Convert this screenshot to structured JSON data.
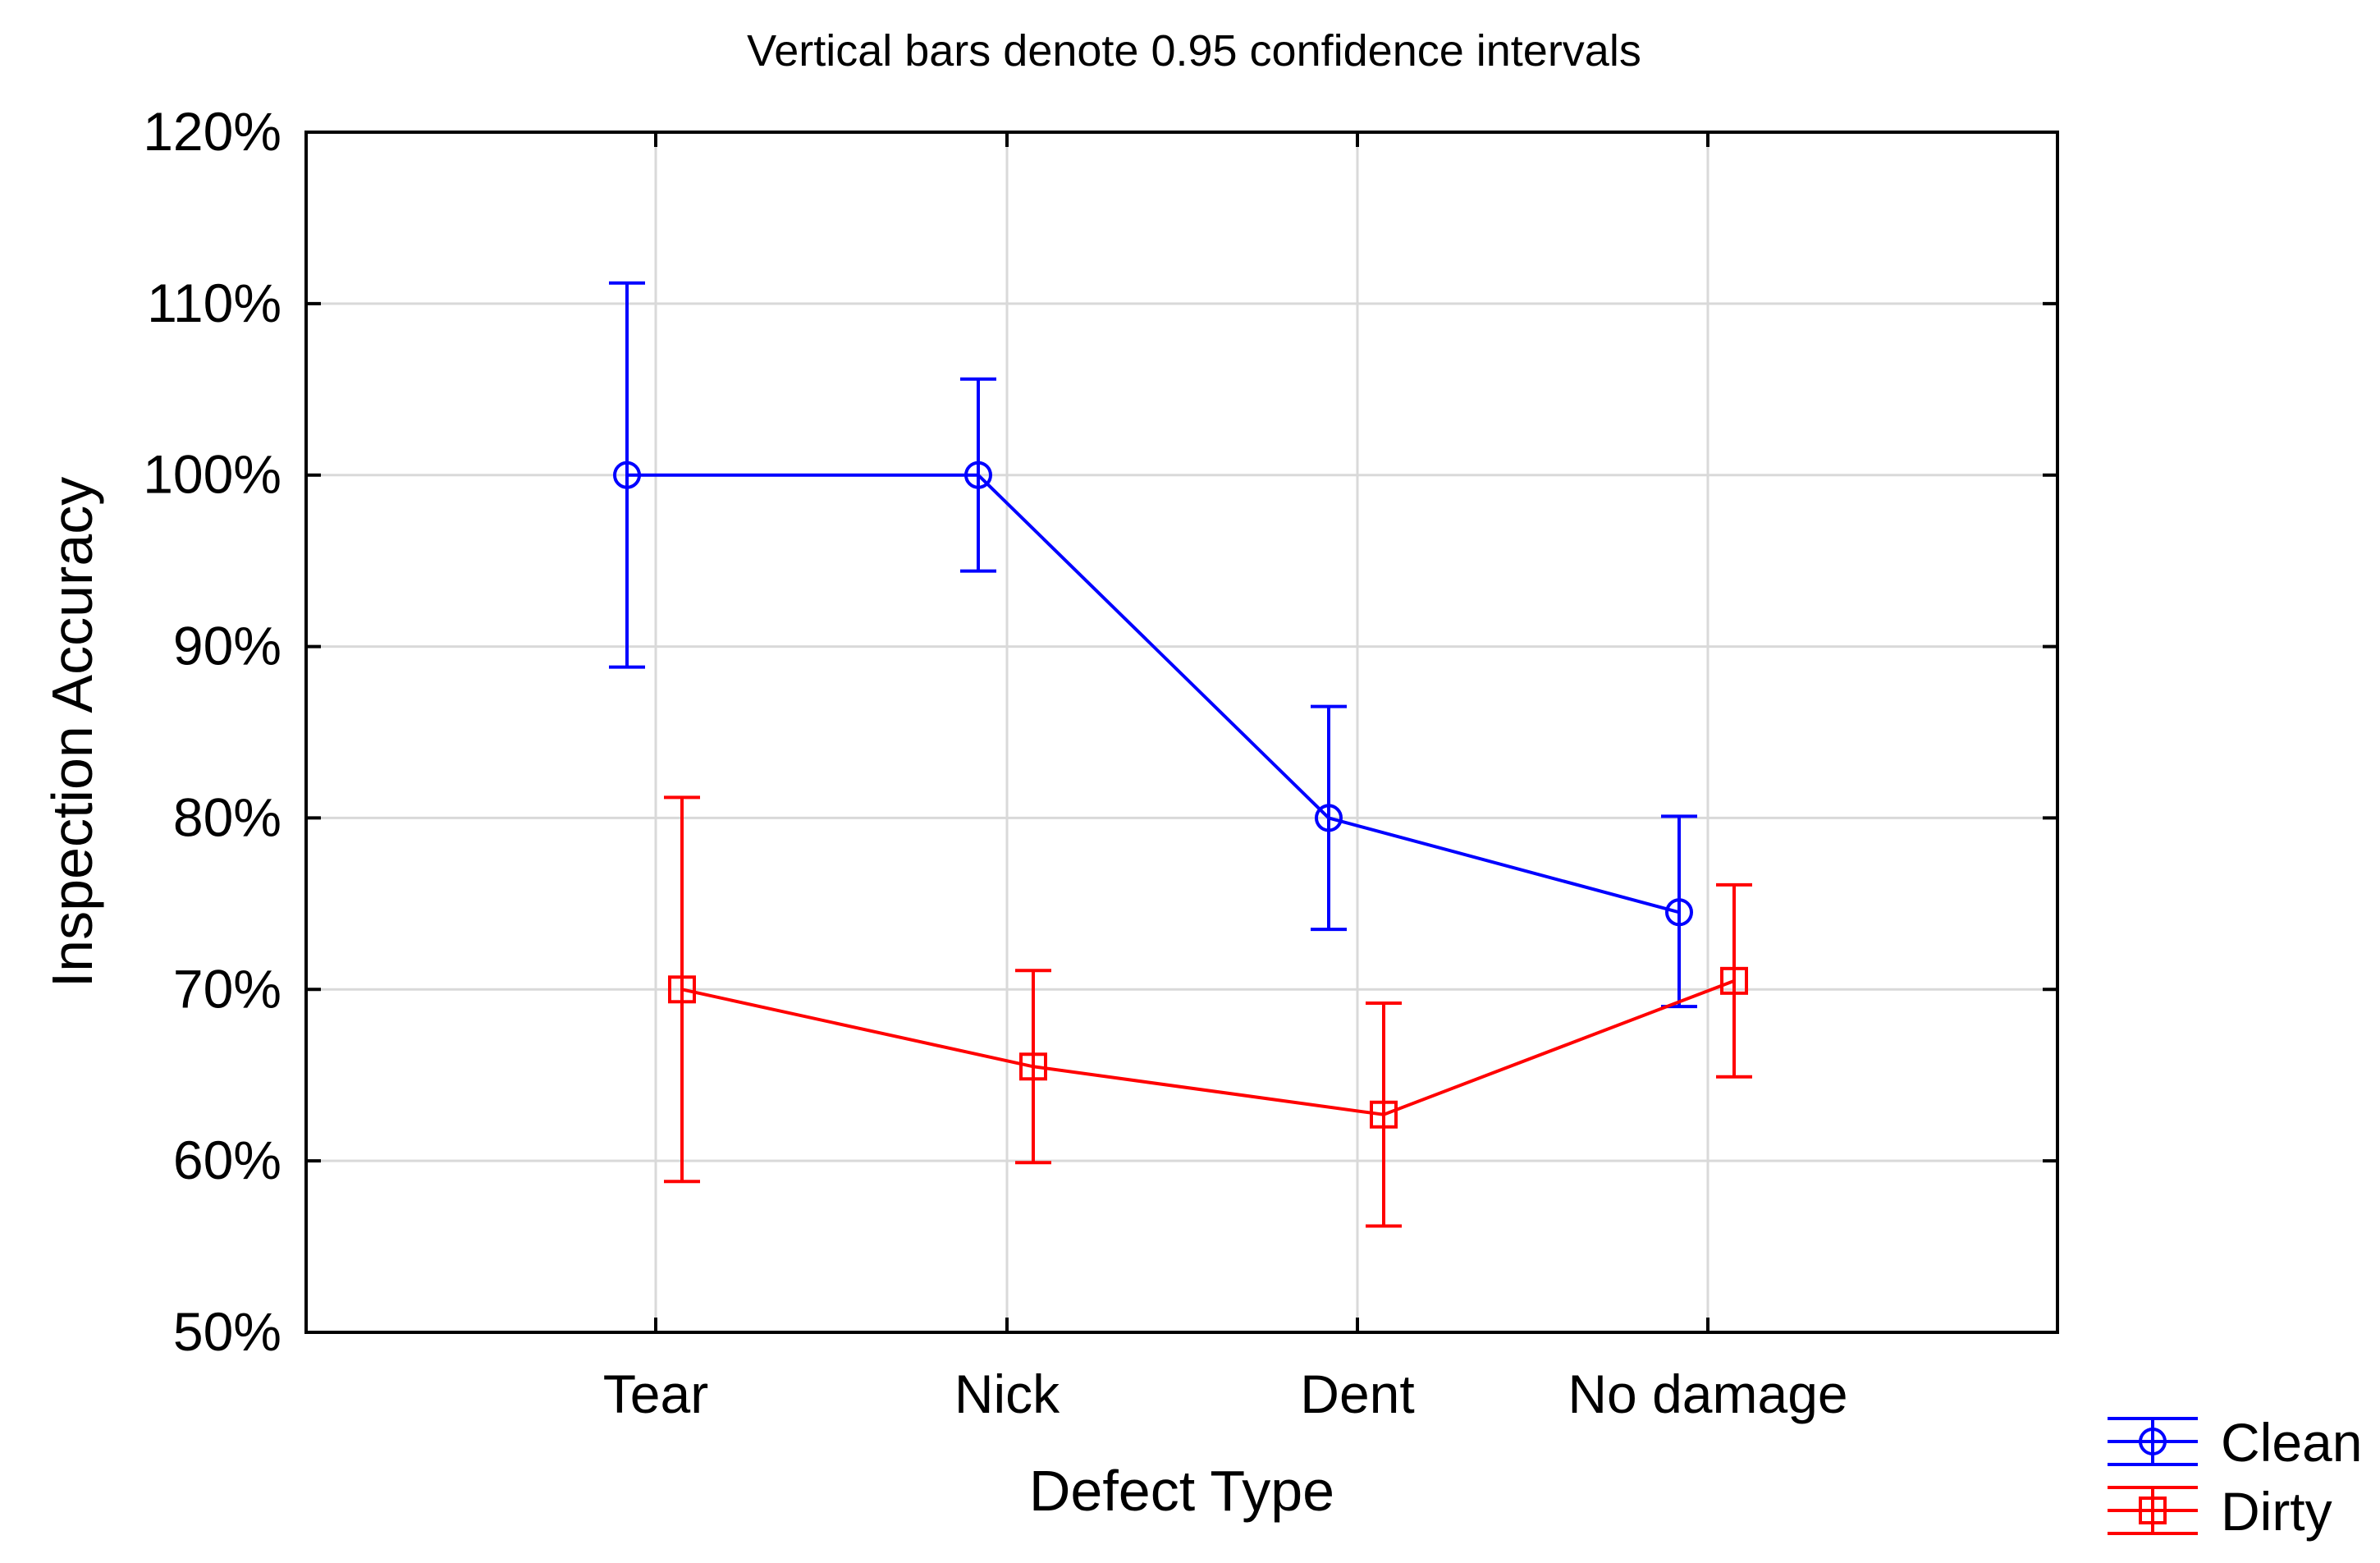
{
  "chart_data": {
    "type": "line",
    "subtitle": "Vertical bars denote 0.95 confidence intervals",
    "xlabel": "Defect Type",
    "ylabel": "Inspection Accuracy",
    "categories": [
      "Tear",
      "Nick",
      "Dent",
      "No damage"
    ],
    "y_ticks": [
      0.5,
      0.6,
      0.7,
      0.8,
      0.9,
      1.0,
      1.1,
      1.2
    ],
    "y_tick_labels": [
      "50%",
      "60%",
      "70%",
      "80%",
      "90%",
      "100%",
      "110%",
      "120%"
    ],
    "ylim": [
      0.5,
      1.2
    ],
    "grid": true,
    "legend_position": "bottom-right",
    "series": [
      {
        "name": "Clean",
        "color": "#0000ff",
        "marker": "circle",
        "values": [
          1.0,
          1.0,
          0.8,
          0.745
        ],
        "ci_lower": [
          0.888,
          0.944,
          0.735,
          0.69
        ],
        "ci_upper": [
          1.112,
          1.056,
          0.865,
          0.801
        ]
      },
      {
        "name": "Dirty",
        "color": "#ff0000",
        "marker": "square",
        "values": [
          0.7,
          0.655,
          0.627,
          0.705
        ],
        "ci_lower": [
          0.588,
          0.599,
          0.562,
          0.649
        ],
        "ci_upper": [
          0.812,
          0.711,
          0.692,
          0.761
        ]
      }
    ]
  }
}
